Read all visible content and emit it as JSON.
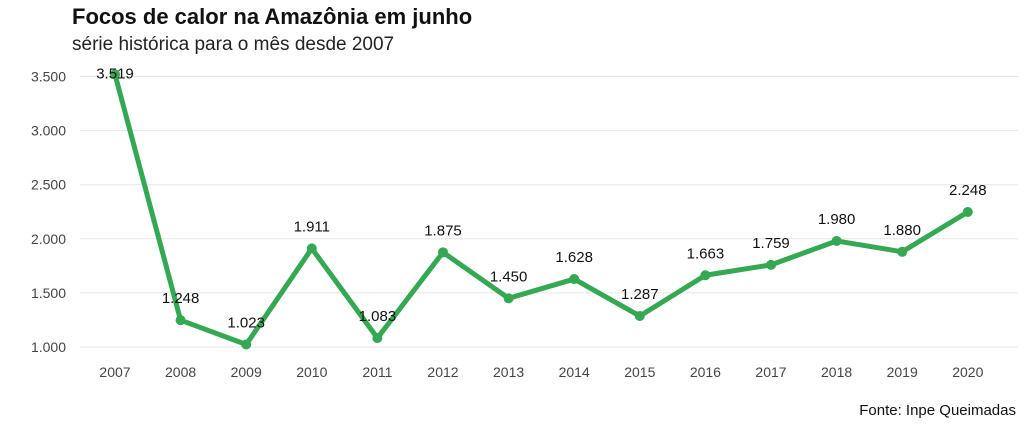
{
  "chart_data": {
    "type": "line",
    "title": "Focos de calor na Amazônia em junho",
    "subtitle": "série histórica para o mês desde 2007",
    "source": "Fonte: Inpe Queimadas",
    "xlabel": "",
    "ylabel": "",
    "categories": [
      "2007",
      "2008",
      "2009",
      "2010",
      "2011",
      "2012",
      "2013",
      "2014",
      "2015",
      "2016",
      "2017",
      "2018",
      "2019",
      "2020"
    ],
    "values": [
      3519,
      1248,
      1023,
      1911,
      1083,
      1875,
      1450,
      1628,
      1287,
      1663,
      1759,
      1980,
      1880,
      2248
    ],
    "value_labels": [
      "3.519",
      "1.248",
      "1.023",
      "1.911",
      "1.083",
      "1.875",
      "1.450",
      "1.628",
      "1.287",
      "1.663",
      "1.759",
      "1.980",
      "1.880",
      "2.248"
    ],
    "yticks": [
      1000,
      1500,
      2000,
      2500,
      3000,
      3500
    ],
    "ytick_labels": [
      "1.000",
      "1.500",
      "2.000",
      "2.500",
      "3.000",
      "3.500"
    ],
    "ylim": [
      880,
      3560
    ],
    "grid": true,
    "legend": "none",
    "line_color": "#34a853"
  }
}
